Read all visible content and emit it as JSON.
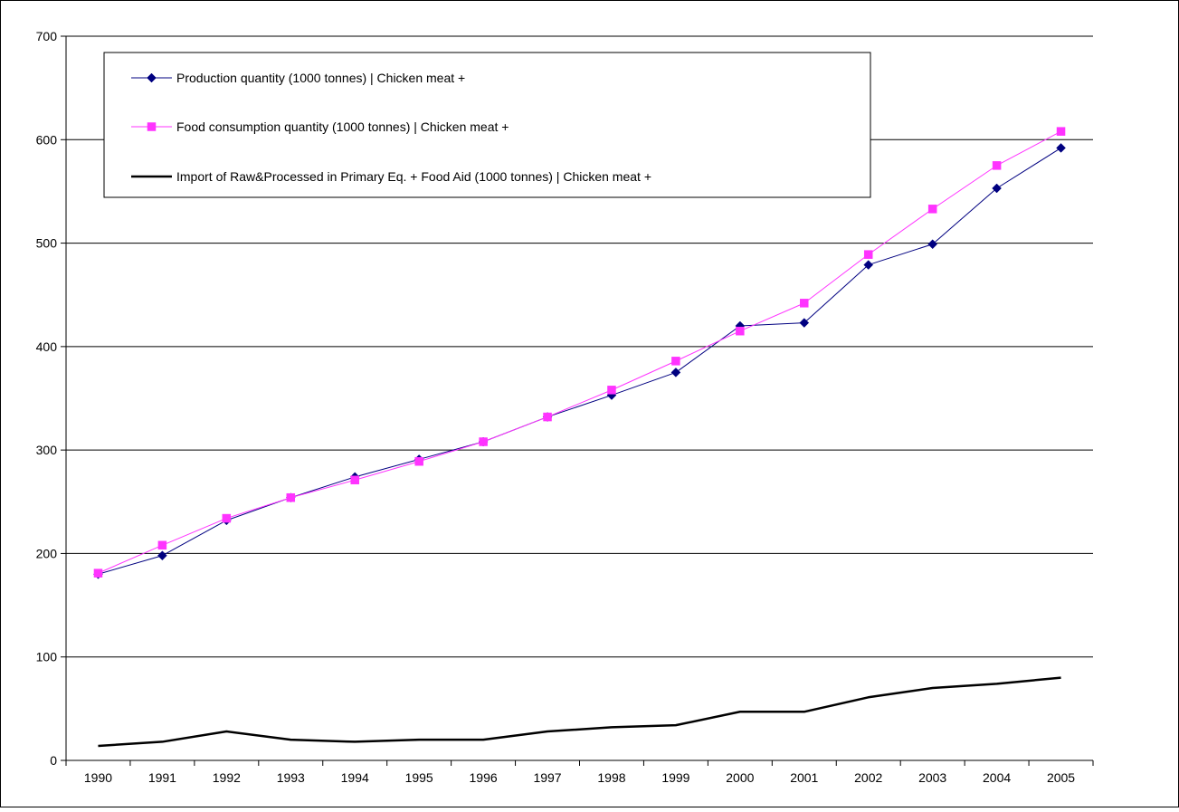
{
  "chart_data": {
    "type": "line",
    "title": "",
    "xlabel": "",
    "ylabel": "",
    "categories": [
      "1990",
      "1991",
      "1992",
      "1993",
      "1994",
      "1995",
      "1996",
      "1997",
      "1998",
      "1999",
      "2000",
      "2001",
      "2002",
      "2003",
      "2004",
      "2005"
    ],
    "ylim": [
      0,
      700
    ],
    "yticks": [
      0,
      100,
      200,
      300,
      400,
      500,
      600,
      700
    ],
    "grid": true,
    "legend_position": "top-left",
    "series": [
      {
        "name": "Production quantity (1000 tonnes) | Chicken meat +",
        "color": "#000080",
        "marker": "diamond",
        "values": [
          180,
          198,
          232,
          254,
          274,
          291,
          308,
          332,
          353,
          375,
          420,
          423,
          479,
          499,
          553,
          592
        ]
      },
      {
        "name": "Food consumption quantity (1000 tonnes) | Chicken meat +",
        "color": "#ff33ff",
        "marker": "square",
        "values": [
          181,
          208,
          234,
          254,
          271,
          289,
          308,
          332,
          358,
          386,
          415,
          442,
          489,
          533,
          575,
          608
        ]
      },
      {
        "name": "Import of Raw&Processed in Primary Eq. + Food Aid (1000 tonnes) | Chicken meat +",
        "color": "#000000",
        "marker": "none",
        "values": [
          14,
          18,
          28,
          20,
          18,
          20,
          20,
          28,
          32,
          34,
          47,
          47,
          61,
          70,
          74,
          80
        ]
      }
    ]
  }
}
